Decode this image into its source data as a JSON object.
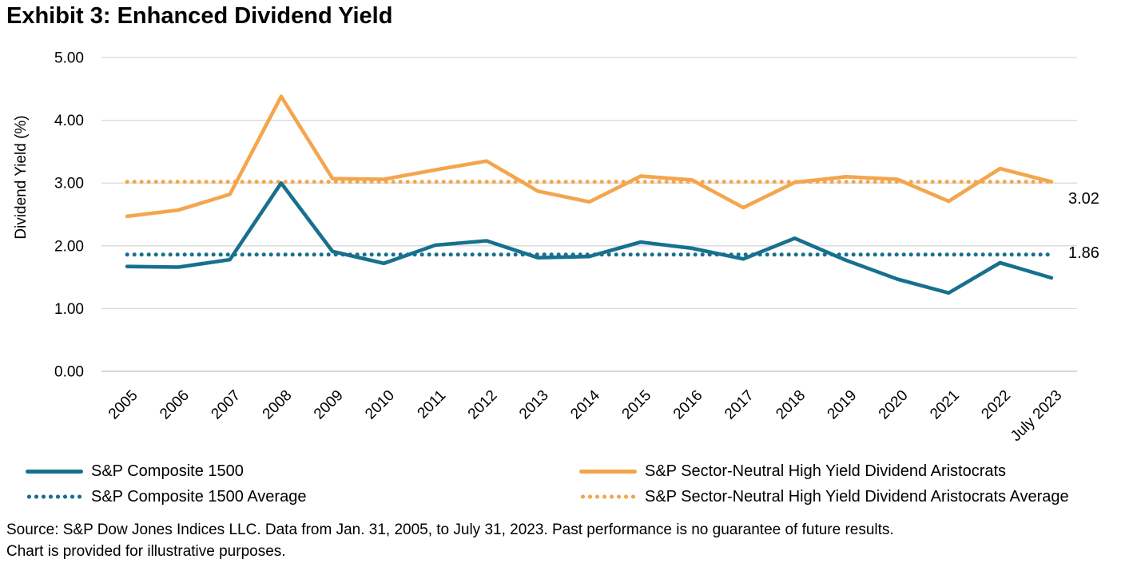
{
  "title": "Exhibit 3: Enhanced Dividend Yield",
  "chart_data": {
    "type": "line",
    "title": "Exhibit 3: Enhanced Dividend Yield",
    "xlabel": "",
    "ylabel": "Dividend Yield (%)",
    "ylim": [
      0,
      5
    ],
    "yticks": [
      "0.00",
      "1.00",
      "2.00",
      "3.00",
      "4.00",
      "5.00"
    ],
    "grid": true,
    "legend_position": "bottom",
    "categories": [
      "2005",
      "2006",
      "2007",
      "2008",
      "2009",
      "2010",
      "2011",
      "2012",
      "2013",
      "2014",
      "2015",
      "2016",
      "2017",
      "2018",
      "2019",
      "2020",
      "2021",
      "2022",
      "July 2023"
    ],
    "series": [
      {
        "name": "S&P Composite 1500",
        "style": "solid",
        "color": "#17708E",
        "values": [
          1.67,
          1.66,
          1.78,
          3.0,
          1.91,
          1.72,
          2.01,
          2.08,
          1.81,
          1.83,
          2.06,
          1.96,
          1.79,
          2.12,
          1.77,
          1.47,
          1.25,
          1.73,
          1.49
        ]
      },
      {
        "name": "S&P Sector-Neutral High Yield Dividend Aristocrats",
        "style": "solid",
        "color": "#F3A64D",
        "values": [
          2.47,
          2.57,
          2.82,
          4.38,
          3.07,
          3.06,
          3.21,
          3.35,
          2.87,
          2.7,
          3.11,
          3.05,
          2.61,
          3.01,
          3.1,
          3.06,
          2.71,
          3.23,
          3.02
        ]
      },
      {
        "name": "S&P Composite 1500 Average",
        "style": "dotted",
        "color": "#17708E",
        "value": 1.86,
        "label": "1.86"
      },
      {
        "name": "S&P Sector-Neutral High Yield Dividend Aristocrats Average",
        "style": "dotted",
        "color": "#F3A64D",
        "value": 3.02,
        "label": "3.02"
      }
    ],
    "colors": {
      "teal": "#17708E",
      "orange": "#F3A64D",
      "gridline": "#D9D9D9",
      "axis": "#BFBFBF",
      "text": "#000000"
    }
  },
  "source": {
    "line1": "Source: S&P Dow Jones Indices LLC. Data from Jan. 31, 2005, to July 31, 2023. Past performance is no guarantee of future results.",
    "line2": "Chart is provided for illustrative purposes."
  }
}
